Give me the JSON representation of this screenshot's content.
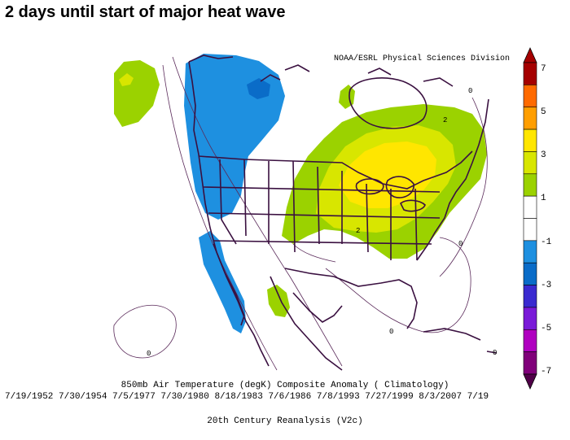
{
  "title": "2 days until start of major heat wave",
  "credit": "NOAA/ESRL Physical Sciences Division",
  "caption_main": "850mb Air Temperature (degK) Composite Anomaly ( Climatology)",
  "caption_dates": "7/19/1952 7/30/1954 7/5/1977 7/30/1980 8/18/1983 7/6/1986 7/8/1993 7/27/1999 8/3/2007 7/19",
  "caption_source": "20th Century Reanalysis (V2c)",
  "colorbar": {
    "labels": [
      "7",
      "5",
      "3",
      "1",
      "-1",
      "-3",
      "-5",
      "-7"
    ],
    "colors": [
      "#a50000",
      "#ff6a00",
      "#ff9e00",
      "#ffe600",
      "#d8e600",
      "#9bd200",
      "#ffffff",
      "#ffffff",
      "#1e90e0",
      "#0a6cc8",
      "#3a2ad0",
      "#7a1ad8",
      "#b000c0",
      "#80007a"
    ]
  },
  "contour_labels": [
    "2",
    "2",
    "0",
    "0",
    "0",
    "0",
    "0"
  ],
  "colors": {
    "warm_1": "#9bd200",
    "warm_2": "#d8e600",
    "warm_3": "#ffe600",
    "cool_1": "#1e90e0",
    "cool_2": "#0a6cc8",
    "border": "#3a1040"
  }
}
